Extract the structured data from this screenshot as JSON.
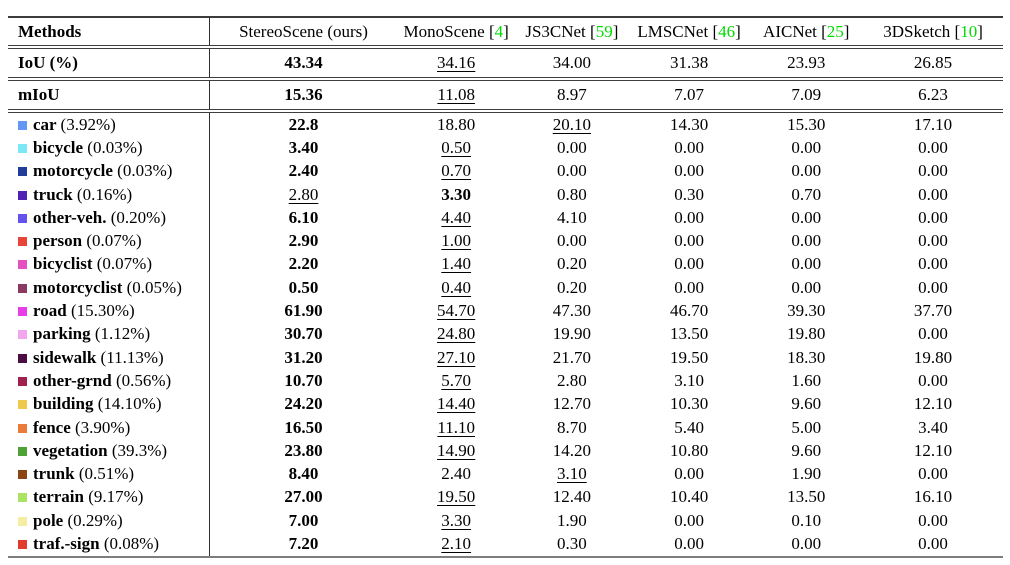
{
  "table": {
    "methods_header": "Methods",
    "columns": [
      {
        "name": "StereoScene (ours)",
        "cite": ""
      },
      {
        "name": "MonoScene",
        "cite": "4"
      },
      {
        "name": "JS3CNet",
        "cite": "59"
      },
      {
        "name": "LMSCNet",
        "cite": "46"
      },
      {
        "name": "AICNet",
        "cite": "25"
      },
      {
        "name": "3DSketch",
        "cite": "10"
      }
    ],
    "cite_color": "#00dc00",
    "summary_rows": [
      {
        "label": "IoU (%)",
        "values": [
          "43.34",
          "34.16",
          "34.00",
          "31.38",
          "23.93",
          "26.85"
        ],
        "styles": [
          "b",
          "u",
          "",
          "",
          "",
          ""
        ]
      },
      {
        "label": "mIoU",
        "values": [
          "15.36",
          "11.08",
          "8.97",
          "7.07",
          "7.09",
          "6.23"
        ],
        "styles": [
          "b",
          "u",
          "",
          "",
          "",
          ""
        ]
      }
    ],
    "class_rows": [
      {
        "label": "car",
        "share": "(3.92%)",
        "color": "#6496F5",
        "values": [
          "22.8",
          "18.80",
          "20.10",
          "14.30",
          "15.30",
          "17.10"
        ],
        "styles": [
          "b",
          "",
          "u",
          "",
          "",
          ""
        ]
      },
      {
        "label": "bicycle",
        "share": "(0.03%)",
        "color": "#7DE8F5",
        "values": [
          "3.40",
          "0.50",
          "0.00",
          "0.00",
          "0.00",
          "0.00"
        ],
        "styles": [
          "b",
          "u",
          "",
          "",
          "",
          ""
        ]
      },
      {
        "label": "motorcycle",
        "share": "(0.03%)",
        "color": "#203E99",
        "values": [
          "2.40",
          "0.70",
          "0.00",
          "0.00",
          "0.00",
          "0.00"
        ],
        "styles": [
          "b",
          "u",
          "",
          "",
          "",
          ""
        ]
      },
      {
        "label": "truck",
        "share": "(0.16%)",
        "color": "#5120B4",
        "values": [
          "2.80",
          "3.30",
          "0.80",
          "0.30",
          "0.70",
          "0.00"
        ],
        "styles": [
          "u",
          "b",
          "",
          "",
          "",
          ""
        ]
      },
      {
        "label": "other-veh.",
        "share": "(0.20%)",
        "color": "#6552EE",
        "values": [
          "6.10",
          "4.40",
          "4.10",
          "0.00",
          "0.00",
          "0.00"
        ],
        "styles": [
          "b",
          "u",
          "",
          "",
          "",
          ""
        ]
      },
      {
        "label": "person",
        "share": "(0.07%)",
        "color": "#E8453A",
        "values": [
          "2.90",
          "1.00",
          "0.00",
          "0.00",
          "0.00",
          "0.00"
        ],
        "styles": [
          "b",
          "u",
          "",
          "",
          "",
          ""
        ]
      },
      {
        "label": "bicyclist",
        "share": "(0.07%)",
        "color": "#E352C0",
        "values": [
          "2.20",
          "1.40",
          "0.20",
          "0.00",
          "0.00",
          "0.00"
        ],
        "styles": [
          "b",
          "u",
          "",
          "",
          "",
          ""
        ]
      },
      {
        "label": "motorcyclist",
        "share": "(0.05%)",
        "color": "#8A3960",
        "values": [
          "0.50",
          "0.40",
          "0.20",
          "0.00",
          "0.00",
          "0.00"
        ],
        "styles": [
          "b",
          "u",
          "",
          "",
          "",
          ""
        ]
      },
      {
        "label": "road",
        "share": "(15.30%)",
        "color": "#E83EE8",
        "values": [
          "61.90",
          "54.70",
          "47.30",
          "46.70",
          "39.30",
          "37.70"
        ],
        "styles": [
          "b",
          "u",
          "",
          "",
          "",
          ""
        ]
      },
      {
        "label": "parking",
        "share": "(1.12%)",
        "color": "#F2A6EE",
        "values": [
          "30.70",
          "24.80",
          "19.90",
          "13.50",
          "19.80",
          "0.00"
        ],
        "styles": [
          "b",
          "u",
          "",
          "",
          "",
          ""
        ]
      },
      {
        "label": "sidewalk",
        "share": "(11.13%)",
        "color": "#4A0E45",
        "values": [
          "31.20",
          "27.10",
          "21.70",
          "19.50",
          "18.30",
          "19.80"
        ],
        "styles": [
          "b",
          "u",
          "",
          "",
          "",
          ""
        ]
      },
      {
        "label": "other-grnd",
        "share": "(0.56%)",
        "color": "#A0204E",
        "values": [
          "10.70",
          "5.70",
          "2.80",
          "3.10",
          "1.60",
          "0.00"
        ],
        "styles": [
          "b",
          "u",
          "",
          "",
          "",
          ""
        ]
      },
      {
        "label": "building",
        "share": "(14.10%)",
        "color": "#EFC94C",
        "values": [
          "24.20",
          "14.40",
          "12.70",
          "10.30",
          "9.60",
          "12.10"
        ],
        "styles": [
          "b",
          "u",
          "",
          "",
          "",
          ""
        ]
      },
      {
        "label": "fence",
        "share": "(3.90%)",
        "color": "#EA7B3B",
        "values": [
          "16.50",
          "11.10",
          "8.70",
          "5.40",
          "5.00",
          "3.40"
        ],
        "styles": [
          "b",
          "u",
          "",
          "",
          "",
          ""
        ]
      },
      {
        "label": "vegetation",
        "share": "(39.3%)",
        "color": "#4EA334",
        "values": [
          "23.80",
          "14.90",
          "14.20",
          "10.80",
          "9.60",
          "12.10"
        ],
        "styles": [
          "b",
          "u",
          "",
          "",
          "",
          ""
        ]
      },
      {
        "label": "trunk",
        "share": "(0.51%)",
        "color": "#8A4513",
        "values": [
          "8.40",
          "2.40",
          "3.10",
          "0.00",
          "1.90",
          "0.00"
        ],
        "styles": [
          "b",
          "",
          "u",
          "",
          "",
          ""
        ]
      },
      {
        "label": "terrain",
        "share": "(9.17%)",
        "color": "#ABE465",
        "values": [
          "27.00",
          "19.50",
          "12.40",
          "10.40",
          "13.50",
          "16.10"
        ],
        "styles": [
          "b",
          "u",
          "",
          "",
          "",
          ""
        ]
      },
      {
        "label": "pole",
        "share": "(0.29%)",
        "color": "#F5EDA2",
        "values": [
          "7.00",
          "3.30",
          "1.90",
          "0.00",
          "0.10",
          "0.00"
        ],
        "styles": [
          "b",
          "u",
          "",
          "",
          "",
          ""
        ]
      },
      {
        "label": "traf.-sign",
        "share": "(0.08%)",
        "color": "#E23A2B",
        "values": [
          "7.20",
          "2.10",
          "0.30",
          "0.00",
          "0.00",
          "0.00"
        ],
        "styles": [
          "b",
          "u",
          "",
          "",
          "",
          ""
        ]
      }
    ]
  }
}
